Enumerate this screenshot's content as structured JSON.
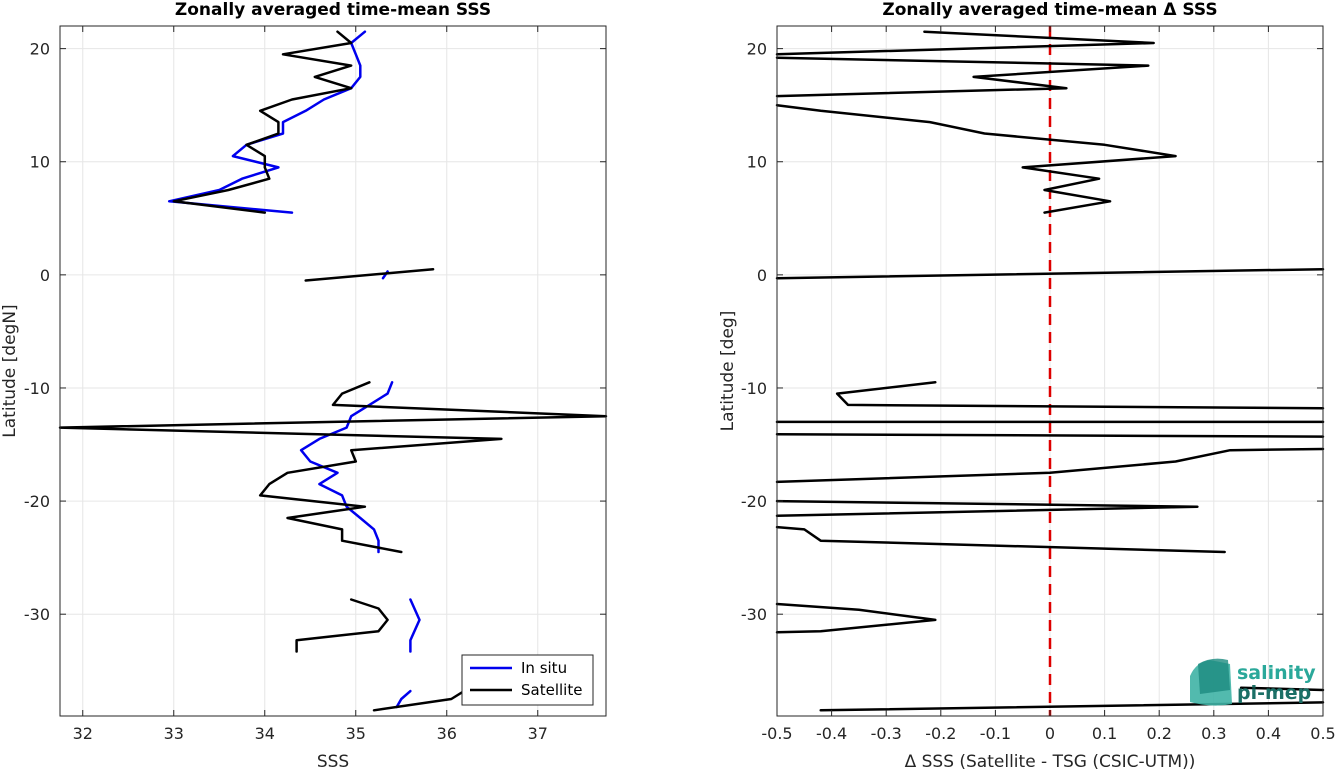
{
  "chart_data": [
    {
      "type": "line",
      "title": "Zonally averaged time-mean SSS",
      "xlabel": "SSS",
      "ylabel": "Latitude [degN]",
      "xlim": [
        31.75,
        37.75
      ],
      "ylim": [
        -39,
        22
      ],
      "xticks": [
        32,
        33,
        34,
        35,
        36,
        37
      ],
      "yticks": [
        20,
        10,
        0,
        -10,
        -20,
        -30
      ],
      "grid": true,
      "legend": "bottom-right",
      "series": [
        {
          "name": "In situ",
          "color": "#0000ee",
          "segments": [
            [
              [
                35.1,
                21.5
              ],
              [
                34.95,
                20.5
              ],
              [
                35.0,
                19.5
              ],
              [
                35.05,
                18.5
              ],
              [
                35.05,
                17.5
              ],
              [
                34.95,
                16.5
              ],
              [
                34.65,
                15.5
              ],
              [
                34.45,
                14.5
              ],
              [
                34.2,
                13.5
              ],
              [
                34.2,
                12.5
              ],
              [
                33.8,
                11.5
              ],
              [
                33.65,
                10.5
              ],
              [
                34.15,
                9.5
              ],
              [
                33.75,
                8.5
              ],
              [
                33.5,
                7.5
              ],
              [
                32.95,
                6.5
              ],
              [
                34.3,
                5.5
              ]
            ],
            [
              [
                35.35,
                0.3
              ],
              [
                35.3,
                -0.3
              ]
            ],
            [
              [
                35.4,
                -9.5
              ],
              [
                35.35,
                -10.5
              ],
              [
                35.15,
                -11.5
              ],
              [
                34.95,
                -12.5
              ],
              [
                34.9,
                -13.5
              ],
              [
                34.6,
                -14.5
              ],
              [
                34.4,
                -15.5
              ],
              [
                34.5,
                -16.5
              ],
              [
                34.8,
                -17.5
              ],
              [
                34.6,
                -18.5
              ],
              [
                34.85,
                -19.5
              ],
              [
                34.9,
                -20.5
              ],
              [
                35.05,
                -21.5
              ],
              [
                35.2,
                -22.5
              ],
              [
                35.25,
                -23.5
              ],
              [
                35.25,
                -24.5
              ]
            ],
            [
              [
                35.6,
                -28.7
              ],
              [
                35.7,
                -30.5
              ],
              [
                35.6,
                -32.3
              ],
              [
                35.6,
                -33.3
              ]
            ],
            [
              [
                35.6,
                -36.8
              ],
              [
                35.5,
                -37.5
              ],
              [
                35.45,
                -38.2
              ]
            ]
          ]
        },
        {
          "name": "Satellite",
          "color": "#000000",
          "segments": [
            [
              [
                34.8,
                21.5
              ],
              [
                34.95,
                20.5
              ],
              [
                34.2,
                19.5
              ],
              [
                34.95,
                18.5
              ],
              [
                34.55,
                17.5
              ],
              [
                34.95,
                16.5
              ],
              [
                34.3,
                15.5
              ],
              [
                33.95,
                14.5
              ],
              [
                34.15,
                13.5
              ],
              [
                34.15,
                12.5
              ],
              [
                33.8,
                11.5
              ],
              [
                34.0,
                10.5
              ],
              [
                34.0,
                9.5
              ],
              [
                34.05,
                8.5
              ],
              [
                33.6,
                7.5
              ],
              [
                33.0,
                6.5
              ],
              [
                34.0,
                5.5
              ]
            ],
            [
              [
                34.45,
                -0.5
              ],
              [
                35.85,
                0.5
              ]
            ],
            [
              [
                35.15,
                -9.5
              ],
              [
                34.85,
                -10.5
              ],
              [
                34.75,
                -11.5
              ],
              [
                37.75,
                -12.5
              ],
              [
                31.75,
                -13.5
              ],
              [
                36.6,
                -14.5
              ],
              [
                34.95,
                -15.5
              ],
              [
                35.0,
                -16.5
              ],
              [
                34.25,
                -17.5
              ],
              [
                34.05,
                -18.5
              ],
              [
                33.95,
                -19.5
              ],
              [
                35.1,
                -20.5
              ],
              [
                34.25,
                -21.5
              ],
              [
                34.85,
                -22.5
              ],
              [
                34.85,
                -23.5
              ],
              [
                35.5,
                -24.5
              ]
            ],
            [
              [
                34.95,
                -28.7
              ],
              [
                35.25,
                -29.5
              ],
              [
                35.35,
                -30.5
              ],
              [
                35.25,
                -31.5
              ],
              [
                34.35,
                -32.3
              ],
              [
                34.35,
                -33.3
              ]
            ],
            [
              [
                36.25,
                -36.5
              ],
              [
                36.05,
                -37.5
              ],
              [
                35.2,
                -38.5
              ]
            ]
          ]
        }
      ]
    },
    {
      "type": "line",
      "title": "Zonally averaged time-mean Δ SSS",
      "xlabel": "Δ SSS (Satellite - TSG (CSIC-UTM))",
      "ylabel": "Latitude [deg]",
      "xlim": [
        -0.5,
        0.5
      ],
      "ylim": [
        -39,
        22
      ],
      "xticks": [
        -0.5,
        -0.4,
        -0.3,
        -0.2,
        -0.1,
        0,
        0.1,
        0.2,
        0.3,
        0.4,
        0.5
      ],
      "xticklabels": [
        "-0.5",
        "-0.4",
        "-0.3",
        "-0.2",
        "-0.1",
        "0",
        "0.1",
        "0.2",
        "0.3",
        "0.4",
        "0.5"
      ],
      "yticks": [
        20,
        10,
        0,
        -10,
        -20,
        -30
      ],
      "grid": true,
      "reference_line": {
        "x": 0,
        "style": "dashed",
        "color": "#dd0000"
      },
      "series": [
        {
          "name": "",
          "color": "#000000",
          "segments": [
            [
              [
                -0.23,
                21.5
              ],
              [
                0.19,
                20.5
              ],
              [
                -0.5,
                19.5
              ]
            ],
            [
              [
                -0.5,
                19.2
              ],
              [
                0.18,
                18.5
              ],
              [
                -0.14,
                17.5
              ],
              [
                0.03,
                16.5
              ],
              [
                -0.5,
                15.8
              ]
            ],
            [
              [
                -0.5,
                15.0
              ],
              [
                -0.42,
                14.5
              ],
              [
                -0.22,
                13.5
              ],
              [
                -0.12,
                12.5
              ],
              [
                0.1,
                11.5
              ],
              [
                0.23,
                10.5
              ],
              [
                -0.05,
                9.5
              ],
              [
                0.09,
                8.5
              ],
              [
                -0.01,
                7.5
              ],
              [
                0.11,
                6.5
              ],
              [
                -0.01,
                5.5
              ]
            ],
            [
              [
                -0.5,
                -0.3
              ],
              [
                0.5,
                0.5
              ]
            ],
            [
              [
                -0.21,
                -9.5
              ],
              [
                -0.39,
                -10.5
              ],
              [
                -0.37,
                -11.5
              ],
              [
                0.5,
                -11.8
              ]
            ],
            [
              [
                -0.5,
                -13.0
              ],
              [
                0.5,
                -13.0
              ]
            ],
            [
              [
                -0.5,
                -14.1
              ],
              [
                0.5,
                -14.3
              ]
            ],
            [
              [
                0.5,
                -15.4
              ],
              [
                0.33,
                -15.5
              ],
              [
                0.23,
                -16.5
              ],
              [
                0.0,
                -17.5
              ],
              [
                -0.5,
                -18.3
              ]
            ],
            [
              [
                -0.5,
                -20.0
              ],
              [
                0.27,
                -20.5
              ],
              [
                -0.5,
                -21.3
              ]
            ],
            [
              [
                -0.5,
                -22.3
              ],
              [
                -0.45,
                -22.5
              ],
              [
                -0.42,
                -23.5
              ],
              [
                0.32,
                -24.5
              ]
            ],
            [
              [
                -0.5,
                -29.1
              ],
              [
                -0.35,
                -29.6
              ],
              [
                -0.21,
                -30.5
              ],
              [
                -0.42,
                -31.5
              ],
              [
                -0.5,
                -31.6
              ]
            ],
            [
              [
                0.5,
                -36.7
              ],
              [
                0.35,
                -36.5
              ]
            ],
            [
              [
                -0.42,
                -38.5
              ],
              [
                0.5,
                -37.8
              ]
            ]
          ]
        }
      ]
    }
  ],
  "legend": {
    "items": [
      "In situ",
      "Satellite"
    ]
  },
  "logo": {
    "line1": "salinity",
    "line2": "pi-mep"
  }
}
